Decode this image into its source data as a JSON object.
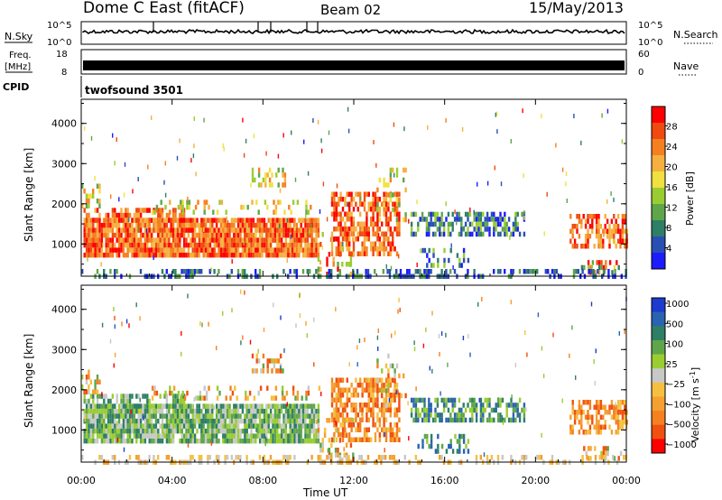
{
  "header": {
    "station": "Dome C East (fitACF)",
    "beam": "Beam 02",
    "date": "15/May/2013"
  },
  "top_panels": {
    "nsky_label": "N.Sky",
    "nsky_tick_hi": "10^5",
    "nsky_tick_lo": "10^0",
    "nsearch_label": "N.Search",
    "nsearch_tick_hi": "10^5",
    "nsearch_tick_lo": "10^0",
    "freq_label": "Freq.",
    "freq_unit": "[MHz]",
    "freq_tick_hi": "18",
    "freq_tick_lo": "8",
    "nave_label": "Nave",
    "nave_tick_hi": "60",
    "nave_tick_lo": "0",
    "cpid_label": "CPID",
    "cpid_value": "twofsound 3501"
  },
  "chart_data": [
    {
      "type": "heatmap",
      "name": "power",
      "ylabel": "Slant Range [km]",
      "yticks": [
        "1000",
        "2000",
        "3000",
        "4000"
      ],
      "ylim": [
        200,
        4600
      ],
      "xlim": [
        0,
        24
      ],
      "colorbar_label": "Power [dB]",
      "colorbar_ticks": [
        "4",
        "8",
        "12",
        "16",
        "20",
        "24",
        "28"
      ],
      "colors": [
        "#1c1cff",
        "#2a4fb4",
        "#2e7f66",
        "#5fa64a",
        "#9acd32",
        "#f0e040",
        "#f5b040",
        "#f58020",
        "#f04a10",
        "#ff0000"
      ]
    },
    {
      "type": "heatmap",
      "name": "velocity",
      "ylabel": "Slant Range [km]",
      "yticks": [
        "1000",
        "2000",
        "3000",
        "4000"
      ],
      "ylim": [
        200,
        4600
      ],
      "xlim": [
        0,
        24
      ],
      "xlabel": "Time UT",
      "xticks": [
        "00:00",
        "04:00",
        "08:00",
        "12:00",
        "16:00",
        "20:00",
        "00:00"
      ],
      "colorbar_label": "Velocity [m s^-1]",
      "colorbar_ticks": [
        "1000",
        "500",
        "100",
        "25",
        "-25",
        "-100",
        "-500",
        "-1000"
      ],
      "colors": [
        "#1c3ad0",
        "#2a63b0",
        "#2e7f66",
        "#5fa64a",
        "#9acd32",
        "#c8c8c8",
        "#f5c040",
        "#f5a030",
        "#f58020",
        "#f05010",
        "#ff0000"
      ]
    }
  ]
}
